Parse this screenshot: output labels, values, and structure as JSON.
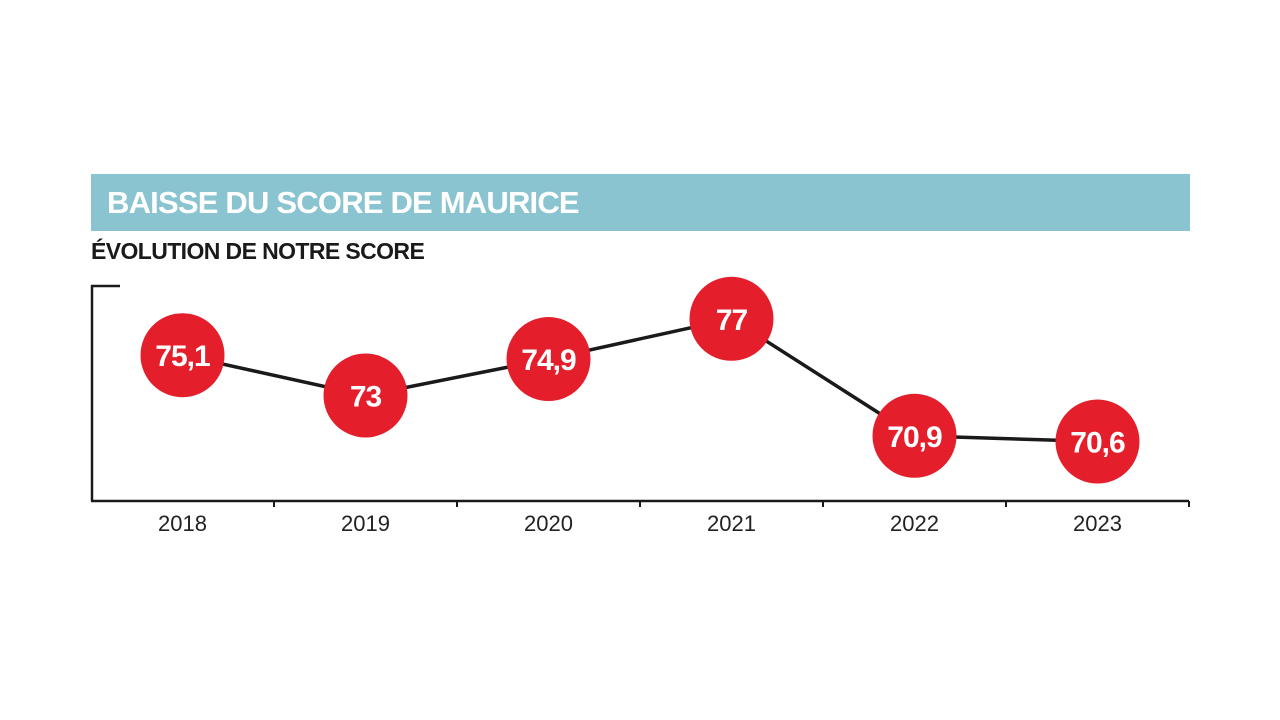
{
  "chart_data": {
    "type": "line",
    "title": "BAISSE DU SCORE DE MAURICE",
    "subtitle": "ÉVOLUTION DE NOTRE SCORE",
    "categories": [
      "2018",
      "2019",
      "2020",
      "2021",
      "2022",
      "2023"
    ],
    "values": [
      75.1,
      73,
      74.9,
      77,
      70.9,
      70.6
    ],
    "value_labels": [
      "75,1",
      "73",
      "74,9",
      "77",
      "70,9",
      "70,6"
    ],
    "xlabel": "",
    "ylabel": "",
    "ylim": [
      67.5,
      78.5
    ],
    "grid": false,
    "colors": {
      "title_bar": "#8ac4d1",
      "marker": "#e41e2b",
      "line": "#1a1a1a",
      "axis": "#1a1a1a"
    }
  }
}
